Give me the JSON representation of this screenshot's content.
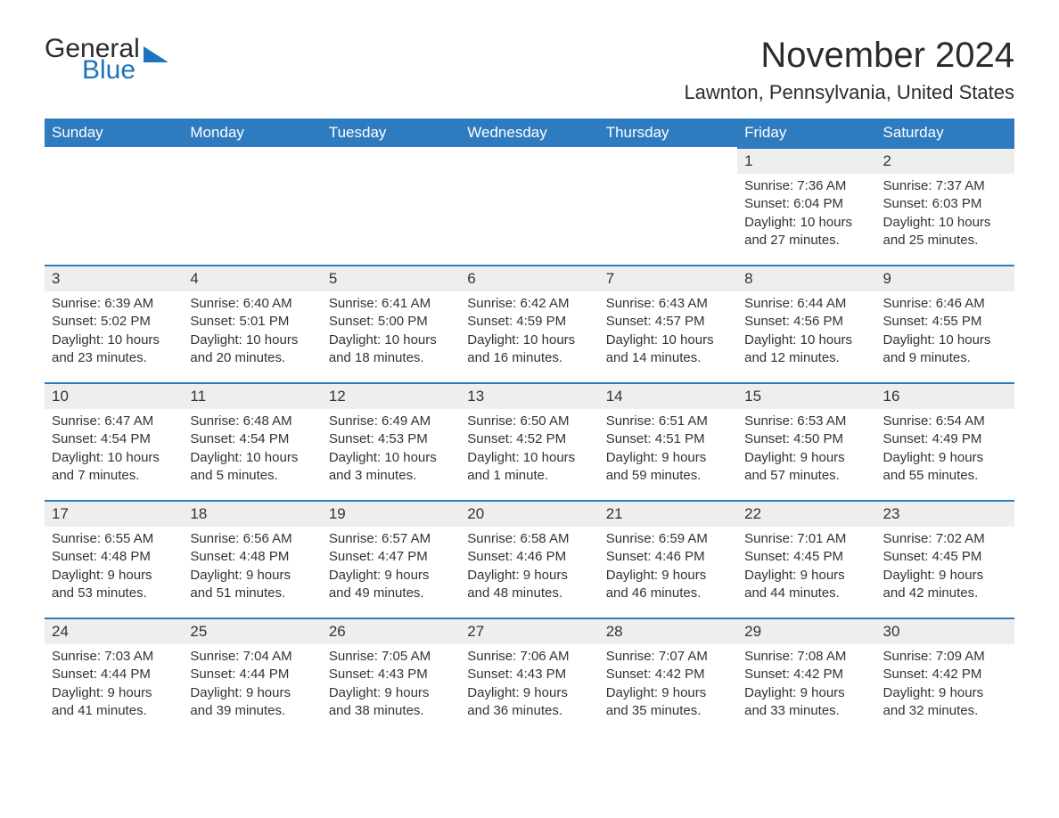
{
  "logo": {
    "word1": "General",
    "word2": "Blue"
  },
  "title": "November 2024",
  "location": "Lawnton, Pennsylvania, United States",
  "style": {
    "header_bg": "#2f7bbf",
    "header_fg": "#ffffff",
    "daynum_bg": "#eeeeee",
    "row_border": "#2f7bbf",
    "text_color": "#333333",
    "logo_blue": "#1e73be",
    "font_family": "Arial",
    "title_fontsize": 40,
    "location_fontsize": 22,
    "header_fontsize": 17,
    "body_fontsize": 15
  },
  "weekdays": [
    "Sunday",
    "Monday",
    "Tuesday",
    "Wednesday",
    "Thursday",
    "Friday",
    "Saturday"
  ],
  "leading_blanks": 5,
  "days": [
    {
      "n": 1,
      "sunrise": "7:36 AM",
      "sunset": "6:04 PM",
      "daylight": "10 hours and 27 minutes."
    },
    {
      "n": 2,
      "sunrise": "7:37 AM",
      "sunset": "6:03 PM",
      "daylight": "10 hours and 25 minutes."
    },
    {
      "n": 3,
      "sunrise": "6:39 AM",
      "sunset": "5:02 PM",
      "daylight": "10 hours and 23 minutes."
    },
    {
      "n": 4,
      "sunrise": "6:40 AM",
      "sunset": "5:01 PM",
      "daylight": "10 hours and 20 minutes."
    },
    {
      "n": 5,
      "sunrise": "6:41 AM",
      "sunset": "5:00 PM",
      "daylight": "10 hours and 18 minutes."
    },
    {
      "n": 6,
      "sunrise": "6:42 AM",
      "sunset": "4:59 PM",
      "daylight": "10 hours and 16 minutes."
    },
    {
      "n": 7,
      "sunrise": "6:43 AM",
      "sunset": "4:57 PM",
      "daylight": "10 hours and 14 minutes."
    },
    {
      "n": 8,
      "sunrise": "6:44 AM",
      "sunset": "4:56 PM",
      "daylight": "10 hours and 12 minutes."
    },
    {
      "n": 9,
      "sunrise": "6:46 AM",
      "sunset": "4:55 PM",
      "daylight": "10 hours and 9 minutes."
    },
    {
      "n": 10,
      "sunrise": "6:47 AM",
      "sunset": "4:54 PM",
      "daylight": "10 hours and 7 minutes."
    },
    {
      "n": 11,
      "sunrise": "6:48 AM",
      "sunset": "4:54 PM",
      "daylight": "10 hours and 5 minutes."
    },
    {
      "n": 12,
      "sunrise": "6:49 AM",
      "sunset": "4:53 PM",
      "daylight": "10 hours and 3 minutes."
    },
    {
      "n": 13,
      "sunrise": "6:50 AM",
      "sunset": "4:52 PM",
      "daylight": "10 hours and 1 minute."
    },
    {
      "n": 14,
      "sunrise": "6:51 AM",
      "sunset": "4:51 PM",
      "daylight": "9 hours and 59 minutes."
    },
    {
      "n": 15,
      "sunrise": "6:53 AM",
      "sunset": "4:50 PM",
      "daylight": "9 hours and 57 minutes."
    },
    {
      "n": 16,
      "sunrise": "6:54 AM",
      "sunset": "4:49 PM",
      "daylight": "9 hours and 55 minutes."
    },
    {
      "n": 17,
      "sunrise": "6:55 AM",
      "sunset": "4:48 PM",
      "daylight": "9 hours and 53 minutes."
    },
    {
      "n": 18,
      "sunrise": "6:56 AM",
      "sunset": "4:48 PM",
      "daylight": "9 hours and 51 minutes."
    },
    {
      "n": 19,
      "sunrise": "6:57 AM",
      "sunset": "4:47 PM",
      "daylight": "9 hours and 49 minutes."
    },
    {
      "n": 20,
      "sunrise": "6:58 AM",
      "sunset": "4:46 PM",
      "daylight": "9 hours and 48 minutes."
    },
    {
      "n": 21,
      "sunrise": "6:59 AM",
      "sunset": "4:46 PM",
      "daylight": "9 hours and 46 minutes."
    },
    {
      "n": 22,
      "sunrise": "7:01 AM",
      "sunset": "4:45 PM",
      "daylight": "9 hours and 44 minutes."
    },
    {
      "n": 23,
      "sunrise": "7:02 AM",
      "sunset": "4:45 PM",
      "daylight": "9 hours and 42 minutes."
    },
    {
      "n": 24,
      "sunrise": "7:03 AM",
      "sunset": "4:44 PM",
      "daylight": "9 hours and 41 minutes."
    },
    {
      "n": 25,
      "sunrise": "7:04 AM",
      "sunset": "4:44 PM",
      "daylight": "9 hours and 39 minutes."
    },
    {
      "n": 26,
      "sunrise": "7:05 AM",
      "sunset": "4:43 PM",
      "daylight": "9 hours and 38 minutes."
    },
    {
      "n": 27,
      "sunrise": "7:06 AM",
      "sunset": "4:43 PM",
      "daylight": "9 hours and 36 minutes."
    },
    {
      "n": 28,
      "sunrise": "7:07 AM",
      "sunset": "4:42 PM",
      "daylight": "9 hours and 35 minutes."
    },
    {
      "n": 29,
      "sunrise": "7:08 AM",
      "sunset": "4:42 PM",
      "daylight": "9 hours and 33 minutes."
    },
    {
      "n": 30,
      "sunrise": "7:09 AM",
      "sunset": "4:42 PM",
      "daylight": "9 hours and 32 minutes."
    }
  ],
  "labels": {
    "sunrise": "Sunrise: ",
    "sunset": "Sunset: ",
    "daylight": "Daylight: "
  }
}
